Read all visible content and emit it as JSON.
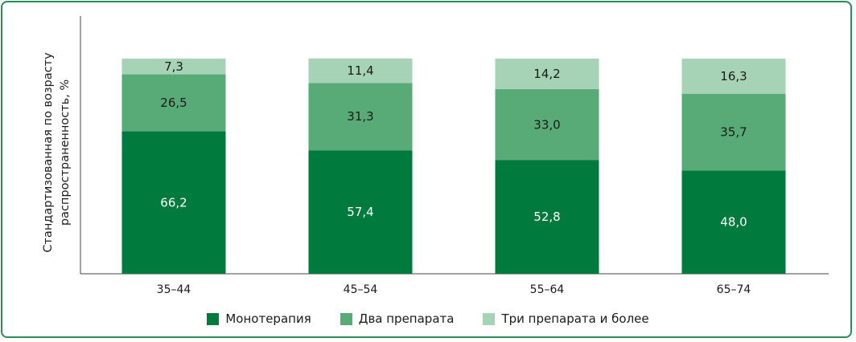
{
  "chart_data": {
    "type": "bar",
    "stacked": true,
    "ylabel": "Стандартизованная по возрасту распространенность, %",
    "ylabel_lines": [
      "Стандартизованная по возрасту",
      "распространенность, %"
    ],
    "ylim": [
      0,
      100
    ],
    "grid": false,
    "legend_position": "bottom",
    "categories": [
      "35–44",
      "45–54",
      "55–64",
      "65–74"
    ],
    "series": [
      {
        "name": "Монотерапия",
        "values": [
          66.2,
          57.4,
          52.8,
          48.0
        ],
        "labels": [
          "66,2",
          "57,4",
          "52,8",
          "48,0"
        ],
        "color": "#007a3d",
        "label_color": "#ffffff"
      },
      {
        "name": "Два препарата",
        "values": [
          26.5,
          31.3,
          33.0,
          35.7
        ],
        "labels": [
          "26,5",
          "31,3",
          "33,0",
          "35,7"
        ],
        "color": "#58aa77",
        "label_color": "#1a1a1a"
      },
      {
        "name": "Три препарата и более",
        "values": [
          7.3,
          11.4,
          14.2,
          16.3
        ],
        "labels": [
          "7,3",
          "11,4",
          "14,2",
          "16,3"
        ],
        "color": "#a6d2b5",
        "label_color": "#1a1a1a"
      }
    ]
  }
}
